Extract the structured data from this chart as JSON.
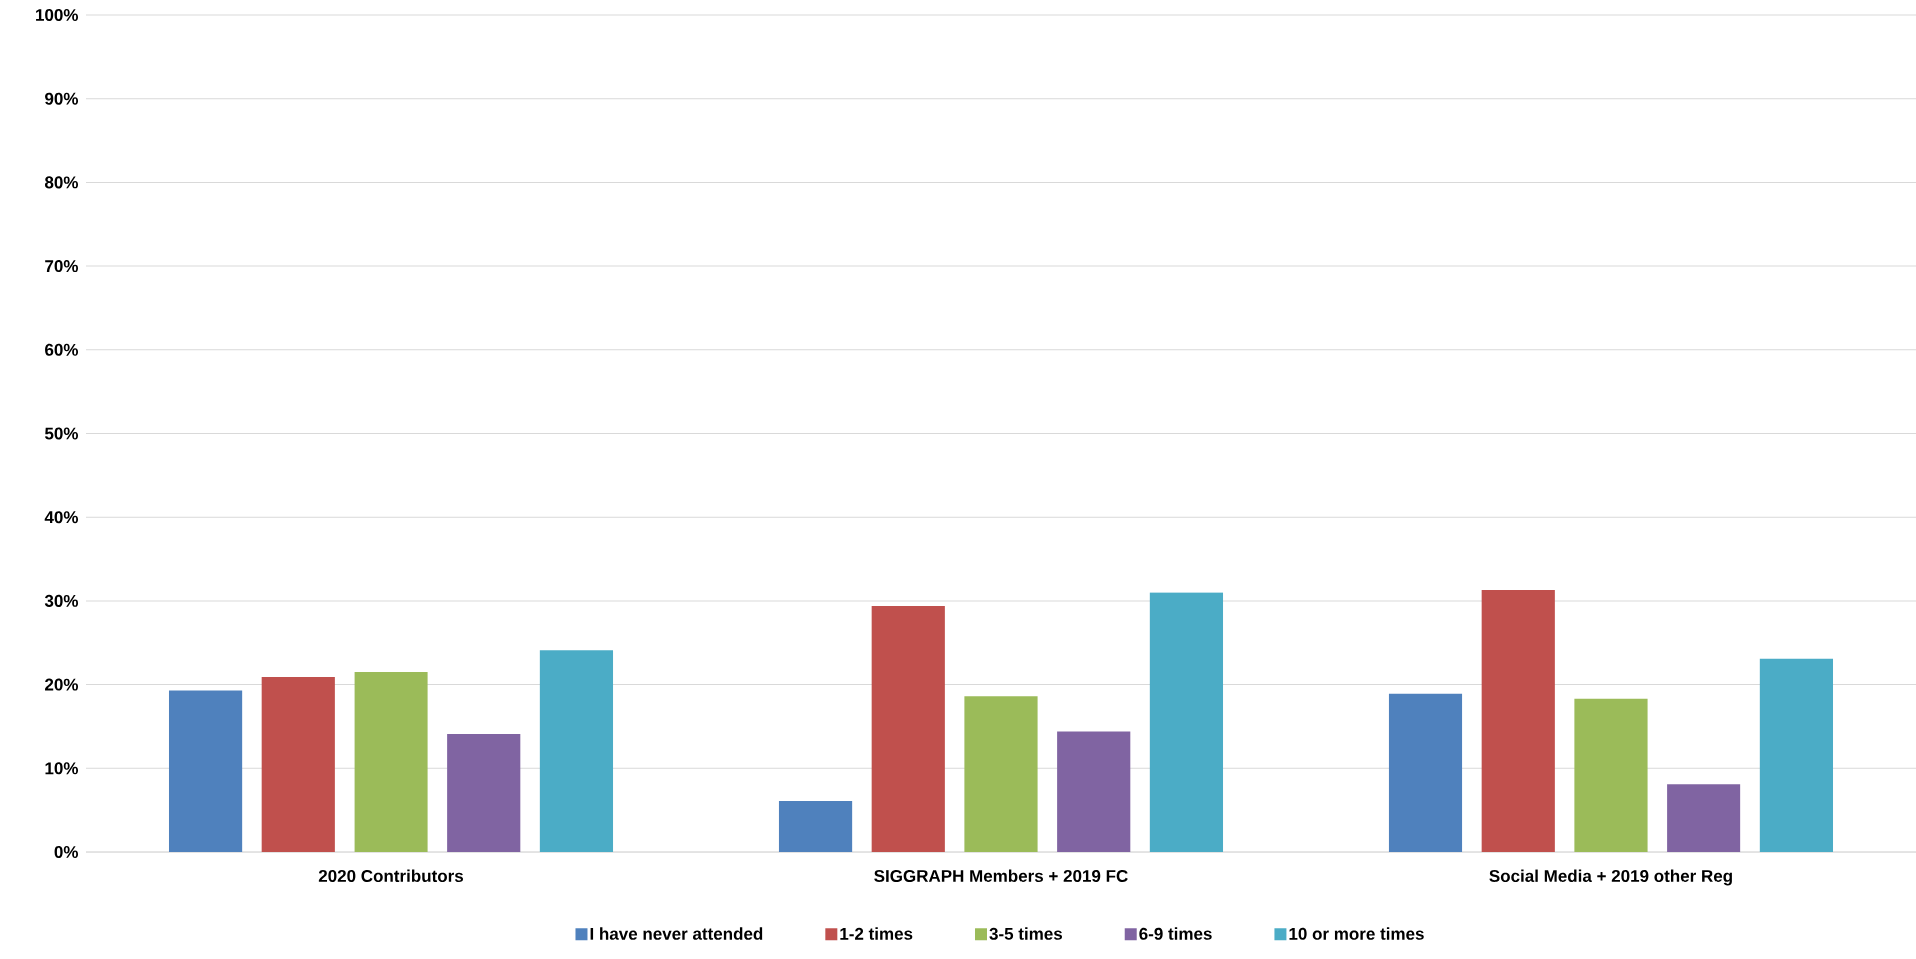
{
  "chart_data": {
    "type": "bar",
    "categories": [
      "2020 Contributors",
      "SIGGRAPH Members + 2019 FC",
      "Social Media + 2019 other Reg"
    ],
    "series": [
      {
        "name": "I have never attended",
        "color": "#4f81bd",
        "values": [
          19.3,
          6.1,
          18.9
        ]
      },
      {
        "name": "1-2 times",
        "color": "#c0504d",
        "values": [
          20.9,
          29.4,
          31.3
        ]
      },
      {
        "name": "3-5 times",
        "color": "#9bbb59",
        "values": [
          21.5,
          18.6,
          18.3
        ]
      },
      {
        "name": "6-9 times",
        "color": "#8064a2",
        "values": [
          14.1,
          14.4,
          8.1
        ]
      },
      {
        "name": "10 or more times",
        "color": "#4bacc6",
        "values": [
          24.1,
          31.0,
          23.1
        ]
      }
    ],
    "ylim": [
      0,
      100
    ],
    "yticks": [
      {
        "value": 0,
        "label": "0%"
      },
      {
        "value": 10,
        "label": "10%"
      },
      {
        "value": 20,
        "label": "20%"
      },
      {
        "value": 30,
        "label": "30%"
      },
      {
        "value": 40,
        "label": "40%"
      },
      {
        "value": 50,
        "label": "50%"
      },
      {
        "value": 60,
        "label": "60%"
      },
      {
        "value": 70,
        "label": "70%"
      },
      {
        "value": 80,
        "label": "80%"
      },
      {
        "value": 90,
        "label": "90%"
      },
      {
        "value": 100,
        "label": "100%"
      }
    ],
    "grid": "y",
    "legend": "bottom"
  }
}
